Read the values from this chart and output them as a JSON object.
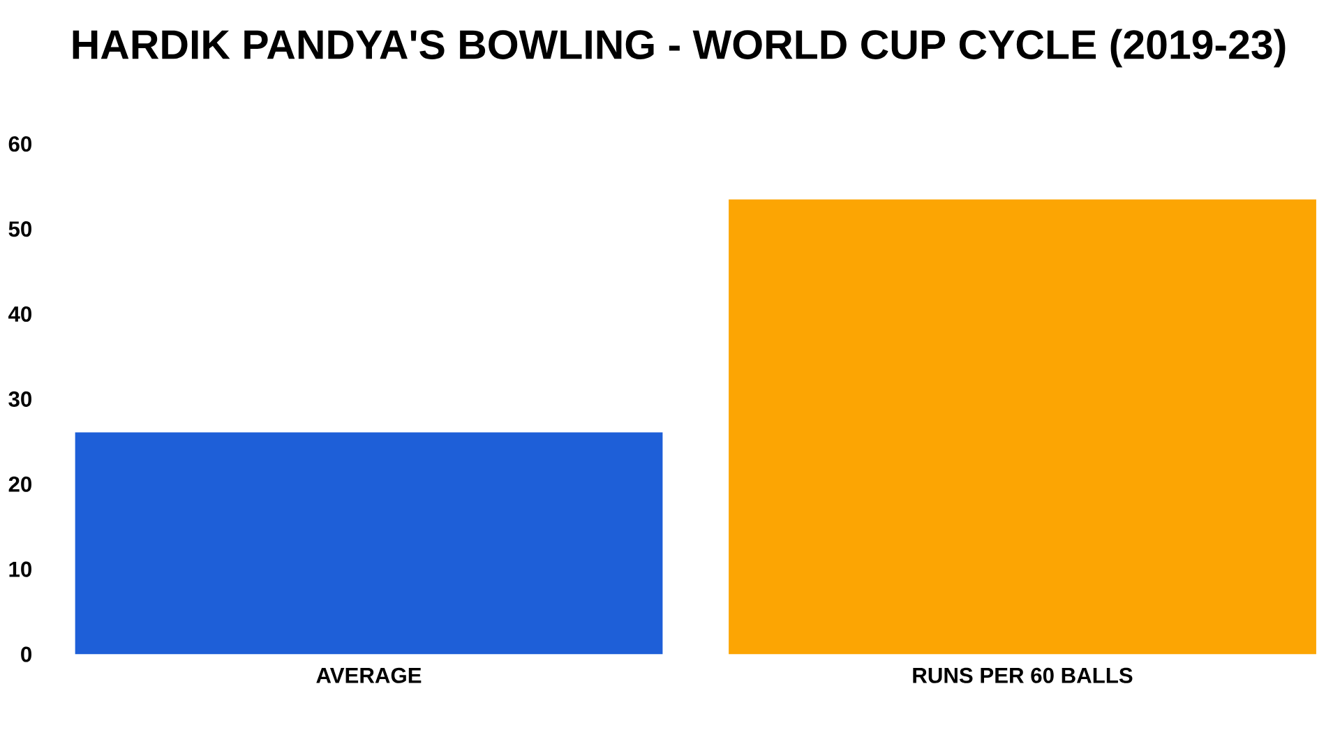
{
  "chart_data": {
    "type": "bar",
    "title": "HARDIK PANDYA'S BOWLING - WORLD CUP CYCLE (2019-23)",
    "categories": [
      "AVERAGE",
      "RUNS PER 60 BALLS"
    ],
    "values": [
      26.1,
      53.5
    ],
    "colors": [
      "#1e5fd8",
      "#fca503"
    ],
    "ylim": [
      0,
      60
    ],
    "yticks": [
      0,
      10,
      20,
      30,
      40,
      50,
      60
    ],
    "grid": false
  }
}
